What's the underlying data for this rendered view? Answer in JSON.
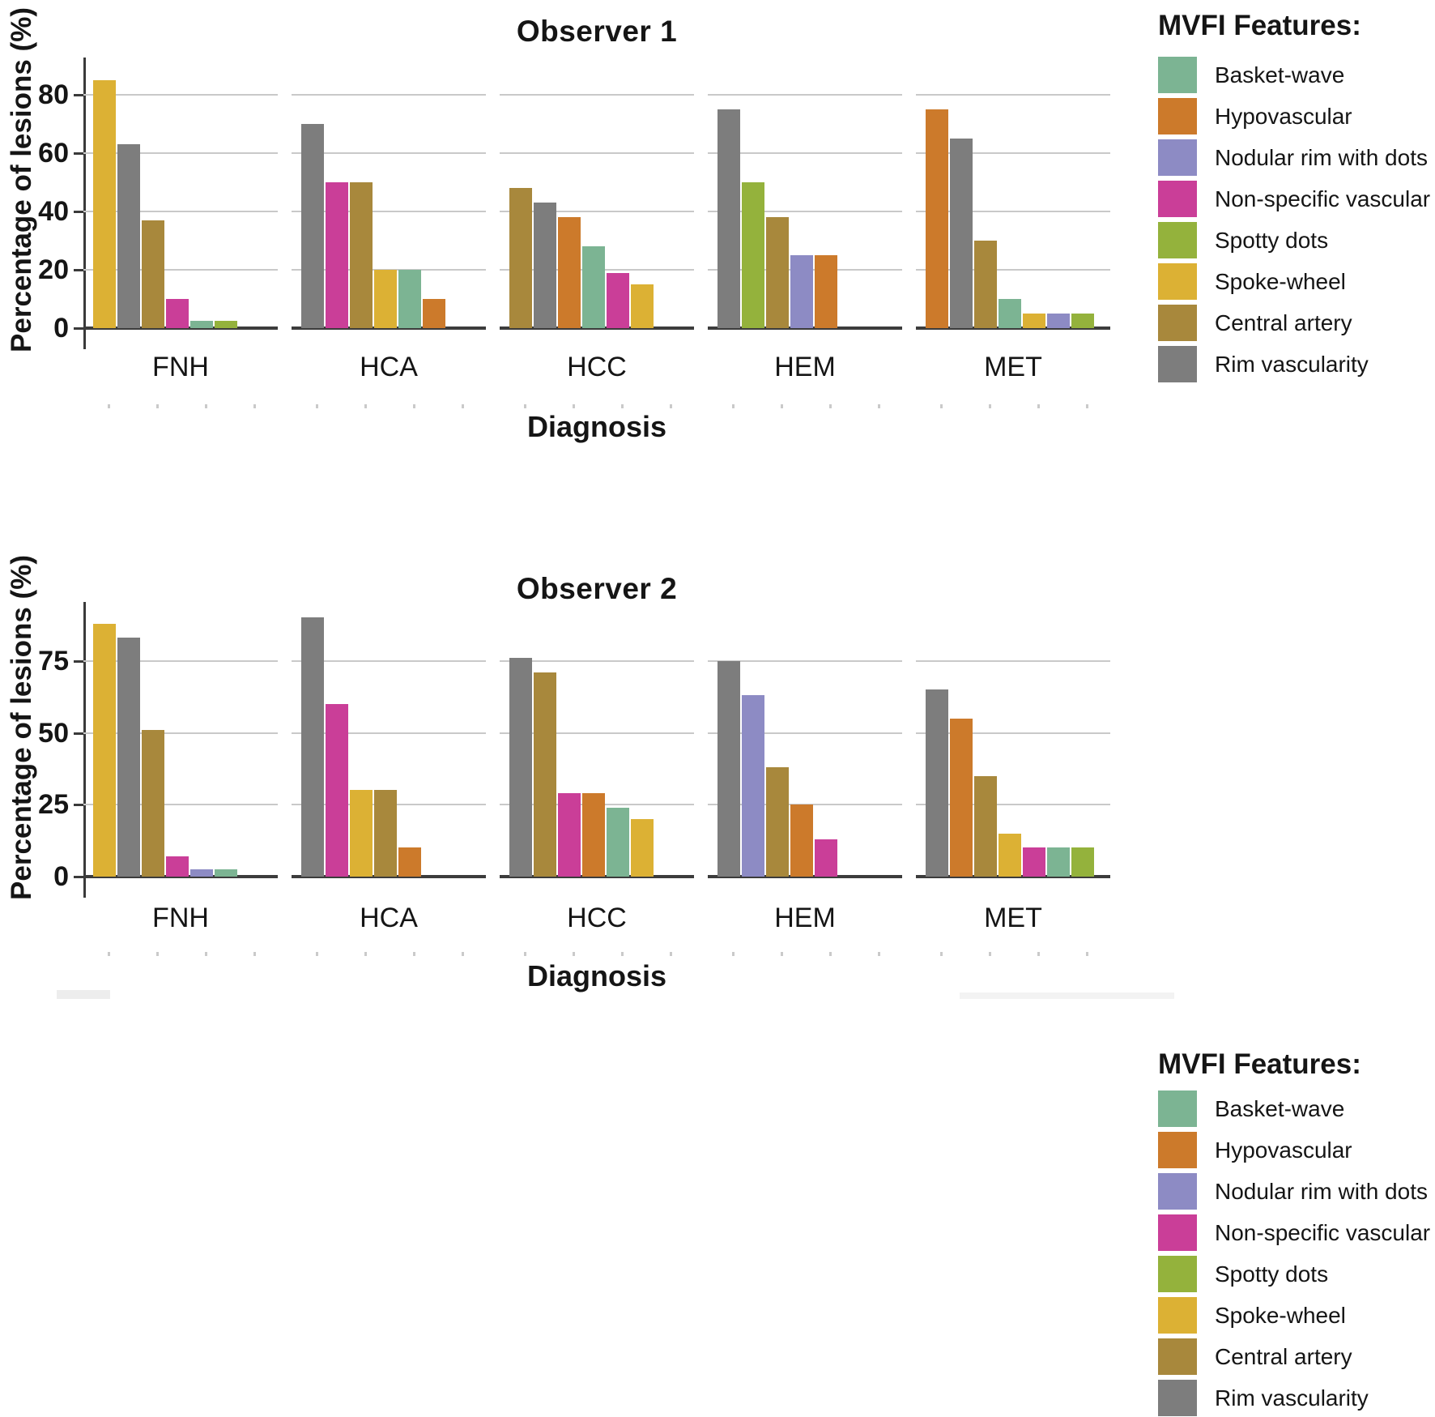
{
  "figure": {
    "background": "#ffffff",
    "axis_color": "#3a3a3a",
    "gridline_color": "#c9c9c9"
  },
  "features": {
    "basket_wave": {
      "label": "Basket-wave",
      "color": "#7cb493"
    },
    "hypovascular": {
      "label": "Hypovascular",
      "color": "#cc7a2b"
    },
    "nodular_rim": {
      "label": "Nodular rim with dots",
      "color": "#8d8bc4"
    },
    "nonspecific_vascular": {
      "label": "Non-specific vascular",
      "color": "#ca3e98"
    },
    "spotty_dots": {
      "label": "Spotty dots",
      "color": "#94b23c"
    },
    "spoke_wheel": {
      "label": "Spoke-wheel",
      "color": "#dcb134"
    },
    "central_artery": {
      "label": "Central artery",
      "color": "#a8883c"
    },
    "rim_vascularity": {
      "label": "Rim vascularity",
      "color": "#7d7d7d"
    }
  },
  "legend": {
    "title": "MVFI Features:",
    "order": [
      "basket_wave",
      "hypovascular",
      "nodular_rim",
      "nonspecific_vascular",
      "spotty_dots",
      "spoke_wheel",
      "central_artery",
      "rim_vascularity"
    ]
  },
  "chart_data": [
    {
      "type": "bar",
      "title": "Observer 1",
      "ylabel": "Percentage of lesions (%)",
      "xlabel": "Diagnosis",
      "y_ticks": [
        0,
        20,
        40,
        60,
        80
      ],
      "ylim": [
        0,
        92
      ],
      "grid": true,
      "legend_position": "right",
      "categories": [
        "FNH",
        "HCA",
        "HCC",
        "HEM",
        "MET"
      ],
      "groups": [
        {
          "category": "FNH",
          "bars": [
            {
              "feature": "spoke_wheel",
              "value": 85
            },
            {
              "feature": "rim_vascularity",
              "value": 63
            },
            {
              "feature": "central_artery",
              "value": 37
            },
            {
              "feature": "nonspecific_vascular",
              "value": 10
            },
            {
              "feature": "basket_wave",
              "value": 2.5
            },
            {
              "feature": "spotty_dots",
              "value": 2.5
            }
          ]
        },
        {
          "category": "HCA",
          "bars": [
            {
              "feature": "rim_vascularity",
              "value": 70
            },
            {
              "feature": "nonspecific_vascular",
              "value": 50
            },
            {
              "feature": "central_artery",
              "value": 50
            },
            {
              "feature": "spoke_wheel",
              "value": 20
            },
            {
              "feature": "basket_wave",
              "value": 20
            },
            {
              "feature": "hypovascular",
              "value": 10
            }
          ]
        },
        {
          "category": "HCC",
          "bars": [
            {
              "feature": "central_artery",
              "value": 48
            },
            {
              "feature": "rim_vascularity",
              "value": 43
            },
            {
              "feature": "hypovascular",
              "value": 38
            },
            {
              "feature": "basket_wave",
              "value": 28
            },
            {
              "feature": "nonspecific_vascular",
              "value": 19
            },
            {
              "feature": "spoke_wheel",
              "value": 15
            }
          ]
        },
        {
          "category": "HEM",
          "bars": [
            {
              "feature": "rim_vascularity",
              "value": 75
            },
            {
              "feature": "spotty_dots",
              "value": 50
            },
            {
              "feature": "central_artery",
              "value": 38
            },
            {
              "feature": "nodular_rim",
              "value": 25
            },
            {
              "feature": "hypovascular",
              "value": 25
            }
          ]
        },
        {
          "category": "MET",
          "bars": [
            {
              "feature": "hypovascular",
              "value": 75
            },
            {
              "feature": "rim_vascularity",
              "value": 65
            },
            {
              "feature": "central_artery",
              "value": 30
            },
            {
              "feature": "basket_wave",
              "value": 10
            },
            {
              "feature": "spoke_wheel",
              "value": 5
            },
            {
              "feature": "nodular_rim",
              "value": 5
            },
            {
              "feature": "spotty_dots",
              "value": 5
            }
          ]
        }
      ]
    },
    {
      "type": "bar",
      "title": "Observer 2",
      "ylabel": "Percentage of lesions (%)",
      "xlabel": "Diagnosis",
      "y_ticks": [
        0,
        25,
        50,
        75
      ],
      "ylim": [
        0,
        95
      ],
      "grid": true,
      "legend_position": "right",
      "categories": [
        "FNH",
        "HCA",
        "HCC",
        "HEM",
        "MET"
      ],
      "groups": [
        {
          "category": "FNH",
          "bars": [
            {
              "feature": "spoke_wheel",
              "value": 88
            },
            {
              "feature": "rim_vascularity",
              "value": 83
            },
            {
              "feature": "central_artery",
              "value": 51
            },
            {
              "feature": "nonspecific_vascular",
              "value": 7
            },
            {
              "feature": "nodular_rim",
              "value": 2.5
            },
            {
              "feature": "basket_wave",
              "value": 2.5
            }
          ]
        },
        {
          "category": "HCA",
          "bars": [
            {
              "feature": "rim_vascularity",
              "value": 90
            },
            {
              "feature": "nonspecific_vascular",
              "value": 60
            },
            {
              "feature": "spoke_wheel",
              "value": 30
            },
            {
              "feature": "central_artery",
              "value": 30
            },
            {
              "feature": "hypovascular",
              "value": 10
            }
          ]
        },
        {
          "category": "HCC",
          "bars": [
            {
              "feature": "rim_vascularity",
              "value": 76
            },
            {
              "feature": "central_artery",
              "value": 71
            },
            {
              "feature": "nonspecific_vascular",
              "value": 29
            },
            {
              "feature": "hypovascular",
              "value": 29
            },
            {
              "feature": "basket_wave",
              "value": 24
            },
            {
              "feature": "spoke_wheel",
              "value": 20
            }
          ]
        },
        {
          "category": "HEM",
          "bars": [
            {
              "feature": "rim_vascularity",
              "value": 75
            },
            {
              "feature": "nodular_rim",
              "value": 63
            },
            {
              "feature": "central_artery",
              "value": 38
            },
            {
              "feature": "hypovascular",
              "value": 25
            },
            {
              "feature": "nonspecific_vascular",
              "value": 13
            }
          ]
        },
        {
          "category": "MET",
          "bars": [
            {
              "feature": "rim_vascularity",
              "value": 65
            },
            {
              "feature": "hypovascular",
              "value": 55
            },
            {
              "feature": "central_artery",
              "value": 35
            },
            {
              "feature": "spoke_wheel",
              "value": 15
            },
            {
              "feature": "nonspecific_vascular",
              "value": 10
            },
            {
              "feature": "basket_wave",
              "value": 10
            },
            {
              "feature": "spotty_dots",
              "value": 10
            }
          ]
        }
      ]
    }
  ]
}
